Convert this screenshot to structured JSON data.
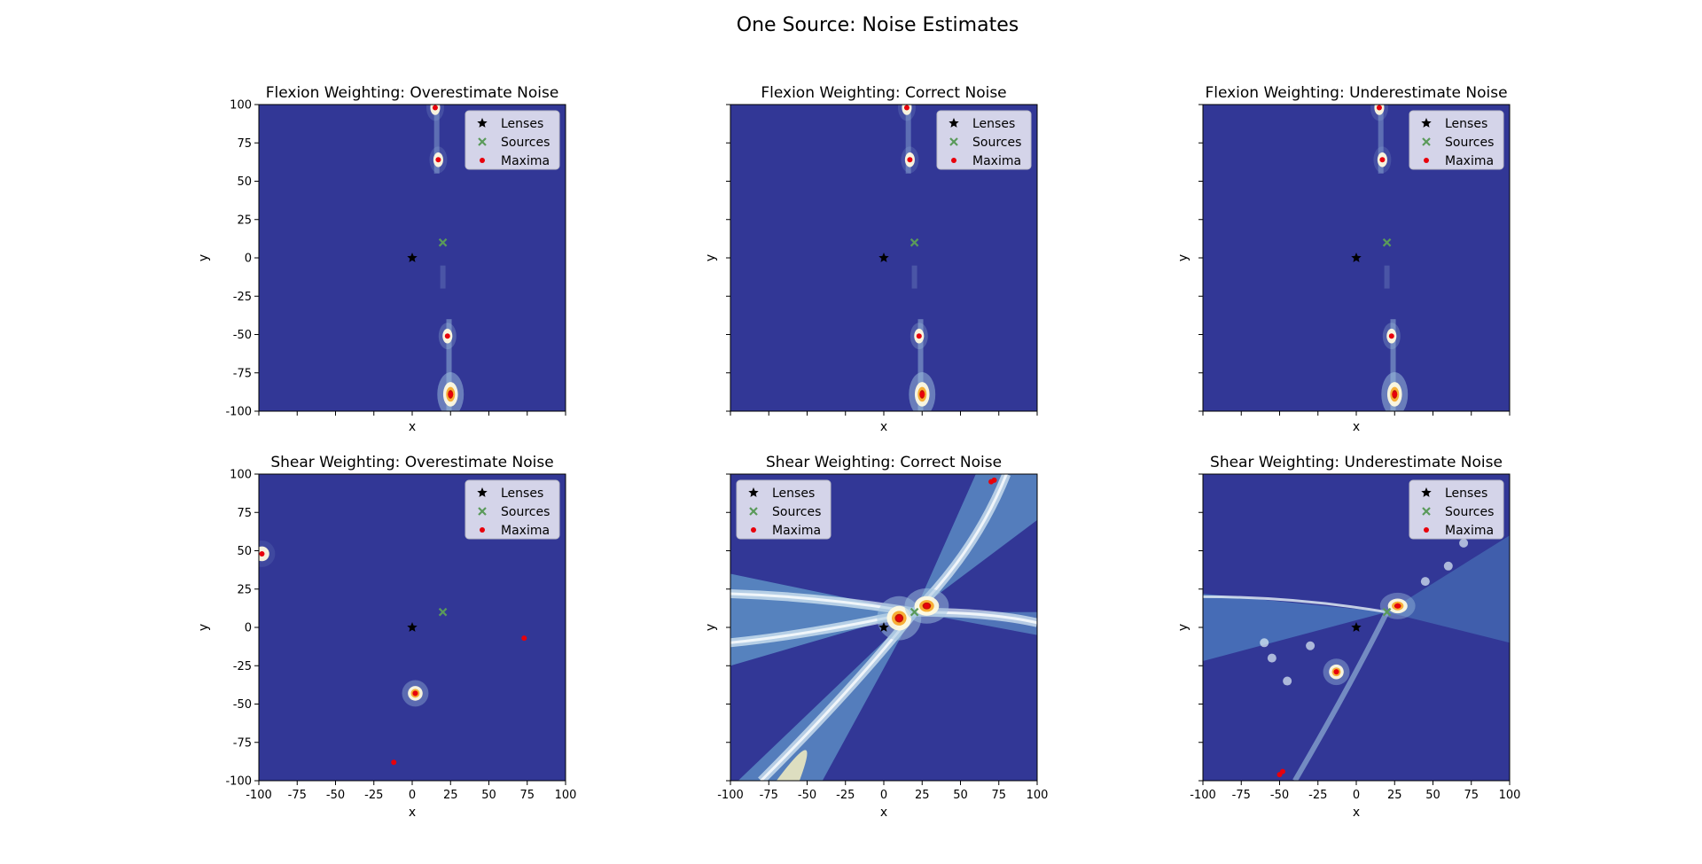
{
  "figure": {
    "title": "One Source: Noise Estimates"
  },
  "colors": {
    "background": "#323796",
    "lens": "#000000",
    "source": "#5a9a5a",
    "maxima": "#e8000b",
    "legend_bg": "#e6e6f2"
  },
  "chart_data": [
    {
      "type": "heatmap",
      "title": "Flexion Weighting: Overestimate Noise",
      "xlabel": "x",
      "ylabel": "y",
      "xlim": [
        -100,
        100
      ],
      "ylim": [
        -100,
        100
      ],
      "show_xticklabels": false,
      "show_yticklabels": true,
      "xticks": [
        -100,
        -75,
        -50,
        -25,
        0,
        25,
        50,
        75,
        100
      ],
      "yticks": [
        -100,
        -75,
        -50,
        -25,
        0,
        25,
        50,
        75,
        100
      ],
      "legend": {
        "position": "upper right",
        "entries": [
          "Lenses",
          "Sources",
          "Maxima"
        ]
      },
      "lenses": [
        [
          0,
          0
        ]
      ],
      "sources": [
        [
          20,
          10
        ]
      ],
      "maxima": [
        [
          15,
          98
        ],
        [
          17,
          64
        ],
        [
          23,
          -51
        ],
        [
          25,
          -89
        ]
      ],
      "hotspots": [
        {
          "x": 25,
          "y": -89,
          "intensity": 1.0,
          "sx": 3,
          "sy": 5
        },
        {
          "x": 23,
          "y": -51,
          "intensity": 0.55,
          "sx": 2,
          "sy": 3
        },
        {
          "x": 17,
          "y": 64,
          "intensity": 0.35,
          "sx": 2,
          "sy": 3
        },
        {
          "x": 15,
          "y": 98,
          "intensity": 0.35,
          "sx": 2,
          "sy": 3
        }
      ],
      "streaks": [
        {
          "x": 16,
          "y0": 55,
          "y1": 100,
          "intensity": 0.18
        },
        {
          "x": 24,
          "y0": -100,
          "y1": -40,
          "intensity": 0.22
        },
        {
          "x": 20,
          "y0": -20,
          "y1": -5,
          "intensity": 0.1
        }
      ]
    },
    {
      "type": "heatmap",
      "title": "Flexion Weighting: Correct Noise",
      "xlabel": "x",
      "ylabel": "y",
      "xlim": [
        -100,
        100
      ],
      "ylim": [
        -100,
        100
      ],
      "show_xticklabels": false,
      "show_yticklabels": false,
      "xticks": [
        -100,
        -75,
        -50,
        -25,
        0,
        25,
        50,
        75,
        100
      ],
      "yticks": [
        -100,
        -75,
        -50,
        -25,
        0,
        25,
        50,
        75,
        100
      ],
      "legend": {
        "position": "upper right",
        "entries": [
          "Lenses",
          "Sources",
          "Maxima"
        ]
      },
      "lenses": [
        [
          0,
          0
        ]
      ],
      "sources": [
        [
          20,
          10
        ]
      ],
      "maxima": [
        [
          15,
          98
        ],
        [
          17,
          64
        ],
        [
          23,
          -51
        ],
        [
          25,
          -89
        ]
      ],
      "hotspots": [
        {
          "x": 25,
          "y": -89,
          "intensity": 1.0,
          "sx": 3,
          "sy": 5
        },
        {
          "x": 23,
          "y": -51,
          "intensity": 0.55,
          "sx": 2,
          "sy": 3
        },
        {
          "x": 17,
          "y": 64,
          "intensity": 0.35,
          "sx": 2,
          "sy": 3
        },
        {
          "x": 15,
          "y": 98,
          "intensity": 0.35,
          "sx": 2,
          "sy": 3
        }
      ],
      "streaks": [
        {
          "x": 16,
          "y0": 55,
          "y1": 100,
          "intensity": 0.18
        },
        {
          "x": 24,
          "y0": -100,
          "y1": -40,
          "intensity": 0.22
        },
        {
          "x": 20,
          "y0": -20,
          "y1": -5,
          "intensity": 0.1
        }
      ]
    },
    {
      "type": "heatmap",
      "title": "Flexion Weighting: Underestimate Noise",
      "xlabel": "x",
      "ylabel": "y",
      "xlim": [
        -100,
        100
      ],
      "ylim": [
        -100,
        100
      ],
      "show_xticklabels": false,
      "show_yticklabels": false,
      "xticks": [
        -100,
        -75,
        -50,
        -25,
        0,
        25,
        50,
        75,
        100
      ],
      "yticks": [
        -100,
        -75,
        -50,
        -25,
        0,
        25,
        50,
        75,
        100
      ],
      "legend": {
        "position": "upper right",
        "entries": [
          "Lenses",
          "Sources",
          "Maxima"
        ]
      },
      "lenses": [
        [
          0,
          0
        ]
      ],
      "sources": [
        [
          20,
          10
        ]
      ],
      "maxima": [
        [
          15,
          98
        ],
        [
          17,
          64
        ],
        [
          23,
          -51
        ],
        [
          25,
          -89
        ]
      ],
      "hotspots": [
        {
          "x": 25,
          "y": -89,
          "intensity": 1.0,
          "sx": 3,
          "sy": 5
        },
        {
          "x": 23,
          "y": -51,
          "intensity": 0.55,
          "sx": 2,
          "sy": 3
        },
        {
          "x": 17,
          "y": 64,
          "intensity": 0.35,
          "sx": 2,
          "sy": 3
        },
        {
          "x": 15,
          "y": 98,
          "intensity": 0.35,
          "sx": 2,
          "sy": 3
        }
      ],
      "streaks": [
        {
          "x": 16,
          "y0": 55,
          "y1": 100,
          "intensity": 0.18
        },
        {
          "x": 24,
          "y0": -100,
          "y1": -40,
          "intensity": 0.22
        },
        {
          "x": 20,
          "y0": -20,
          "y1": -5,
          "intensity": 0.1
        }
      ]
    },
    {
      "type": "heatmap",
      "title": "Shear Weighting: Overestimate Noise",
      "xlabel": "x",
      "ylabel": "y",
      "xlim": [
        -100,
        100
      ],
      "ylim": [
        -100,
        100
      ],
      "show_xticklabels": true,
      "show_yticklabels": true,
      "xticks": [
        -100,
        -75,
        -50,
        -25,
        0,
        25,
        50,
        75,
        100
      ],
      "yticks": [
        -100,
        -75,
        -50,
        -25,
        0,
        25,
        50,
        75,
        100
      ],
      "legend": {
        "position": "upper right",
        "entries": [
          "Lenses",
          "Sources",
          "Maxima"
        ]
      },
      "lenses": [
        [
          0,
          0
        ]
      ],
      "sources": [
        [
          20,
          10
        ]
      ],
      "maxima": [
        [
          -98,
          48
        ],
        [
          73,
          -7
        ],
        [
          2,
          -43
        ],
        [
          -12,
          -88
        ]
      ],
      "hotspots": [
        {
          "x": 2,
          "y": -43,
          "intensity": 0.75,
          "sx": 3,
          "sy": 3
        },
        {
          "x": -98,
          "y": 48,
          "intensity": 0.25,
          "sx": 3,
          "sy": 3
        }
      ],
      "streaks": []
    },
    {
      "type": "heatmap",
      "title": "Shear Weighting: Correct Noise",
      "xlabel": "x",
      "ylabel": "y",
      "xlim": [
        -100,
        100
      ],
      "ylim": [
        -100,
        100
      ],
      "show_xticklabels": true,
      "show_yticklabels": false,
      "xticks": [
        -100,
        -75,
        -50,
        -25,
        0,
        25,
        50,
        75,
        100
      ],
      "yticks": [
        -100,
        -75,
        -50,
        -25,
        0,
        25,
        50,
        75,
        100
      ],
      "legend": {
        "position": "upper left",
        "entries": [
          "Lenses",
          "Sources",
          "Maxima"
        ]
      },
      "lenses": [
        [
          0,
          0
        ]
      ],
      "sources": [
        [
          20,
          10
        ]
      ],
      "maxima": [
        [
          10,
          6
        ],
        [
          28,
          14
        ],
        [
          70,
          95
        ],
        [
          72,
          96
        ]
      ],
      "hotspots": [
        {
          "x": 10,
          "y": 6,
          "intensity": 1.0,
          "sx": 5,
          "sy": 5
        },
        {
          "x": 28,
          "y": 14,
          "intensity": 1.0,
          "sx": 5,
          "sy": 4
        }
      ],
      "streaks": []
    },
    {
      "type": "heatmap",
      "title": "Shear Weighting: Underestimate Noise",
      "xlabel": "x",
      "ylabel": "y",
      "xlim": [
        -100,
        100
      ],
      "ylim": [
        -100,
        100
      ],
      "show_xticklabels": true,
      "show_yticklabels": false,
      "xticks": [
        -100,
        -75,
        -50,
        -25,
        0,
        25,
        50,
        75,
        100
      ],
      "yticks": [
        -100,
        -75,
        -50,
        -25,
        0,
        25,
        50,
        75,
        100
      ],
      "legend": {
        "position": "upper right",
        "entries": [
          "Lenses",
          "Sources",
          "Maxima"
        ]
      },
      "lenses": [
        [
          0,
          0
        ]
      ],
      "sources": [
        [
          20,
          10
        ]
      ],
      "maxima": [
        [
          -13,
          -29
        ],
        [
          27,
          14
        ],
        [
          -50,
          -96
        ],
        [
          -48,
          -94
        ]
      ],
      "hotspots": [
        {
          "x": -13,
          "y": -29,
          "intensity": 0.8,
          "sx": 3,
          "sy": 3
        },
        {
          "x": 27,
          "y": 14,
          "intensity": 0.8,
          "sx": 4,
          "sy": 3
        }
      ],
      "streaks": []
    }
  ]
}
